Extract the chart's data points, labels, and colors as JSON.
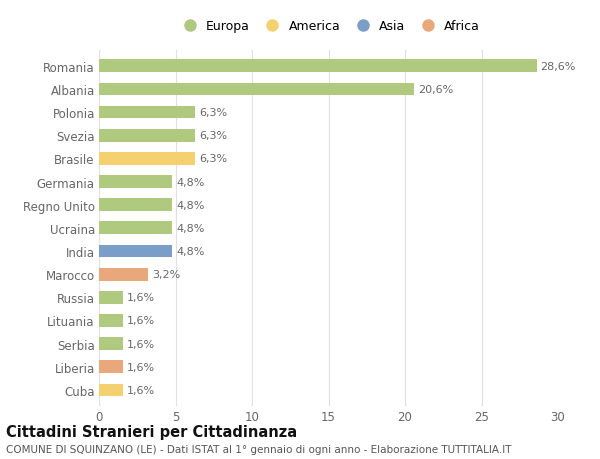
{
  "countries": [
    "Romania",
    "Albania",
    "Polonia",
    "Svezia",
    "Brasile",
    "Germania",
    "Regno Unito",
    "Ucraina",
    "India",
    "Marocco",
    "Russia",
    "Lituania",
    "Serbia",
    "Liberia",
    "Cuba"
  ],
  "values": [
    28.6,
    20.6,
    6.3,
    6.3,
    6.3,
    4.8,
    4.8,
    4.8,
    4.8,
    3.2,
    1.6,
    1.6,
    1.6,
    1.6,
    1.6
  ],
  "labels": [
    "28,6%",
    "20,6%",
    "6,3%",
    "6,3%",
    "6,3%",
    "4,8%",
    "4,8%",
    "4,8%",
    "4,8%",
    "3,2%",
    "1,6%",
    "1,6%",
    "1,6%",
    "1,6%",
    "1,6%"
  ],
  "continents": [
    "Europa",
    "Europa",
    "Europa",
    "Europa",
    "America",
    "Europa",
    "Europa",
    "Europa",
    "Asia",
    "Africa",
    "Europa",
    "Europa",
    "Europa",
    "Africa",
    "America"
  ],
  "colors": {
    "Europa": "#afc97e",
    "America": "#f5d06e",
    "Asia": "#7b9ec9",
    "Africa": "#e8a87c"
  },
  "legend_order": [
    "Europa",
    "America",
    "Asia",
    "Africa"
  ],
  "background_color": "#ffffff",
  "grid_color": "#e0e0e0",
  "title": "Cittadini Stranieri per Cittadinanza",
  "subtitle": "COMUNE DI SQUINZANO (LE) - Dati ISTAT al 1° gennaio di ogni anno - Elaborazione TUTTITALIA.IT",
  "xlim": [
    0,
    30
  ],
  "xticks": [
    0,
    5,
    10,
    15,
    20,
    25,
    30
  ],
  "bar_height": 0.55,
  "label_fontsize": 8,
  "tick_fontsize": 8.5,
  "title_fontsize": 10.5,
  "subtitle_fontsize": 7.5
}
